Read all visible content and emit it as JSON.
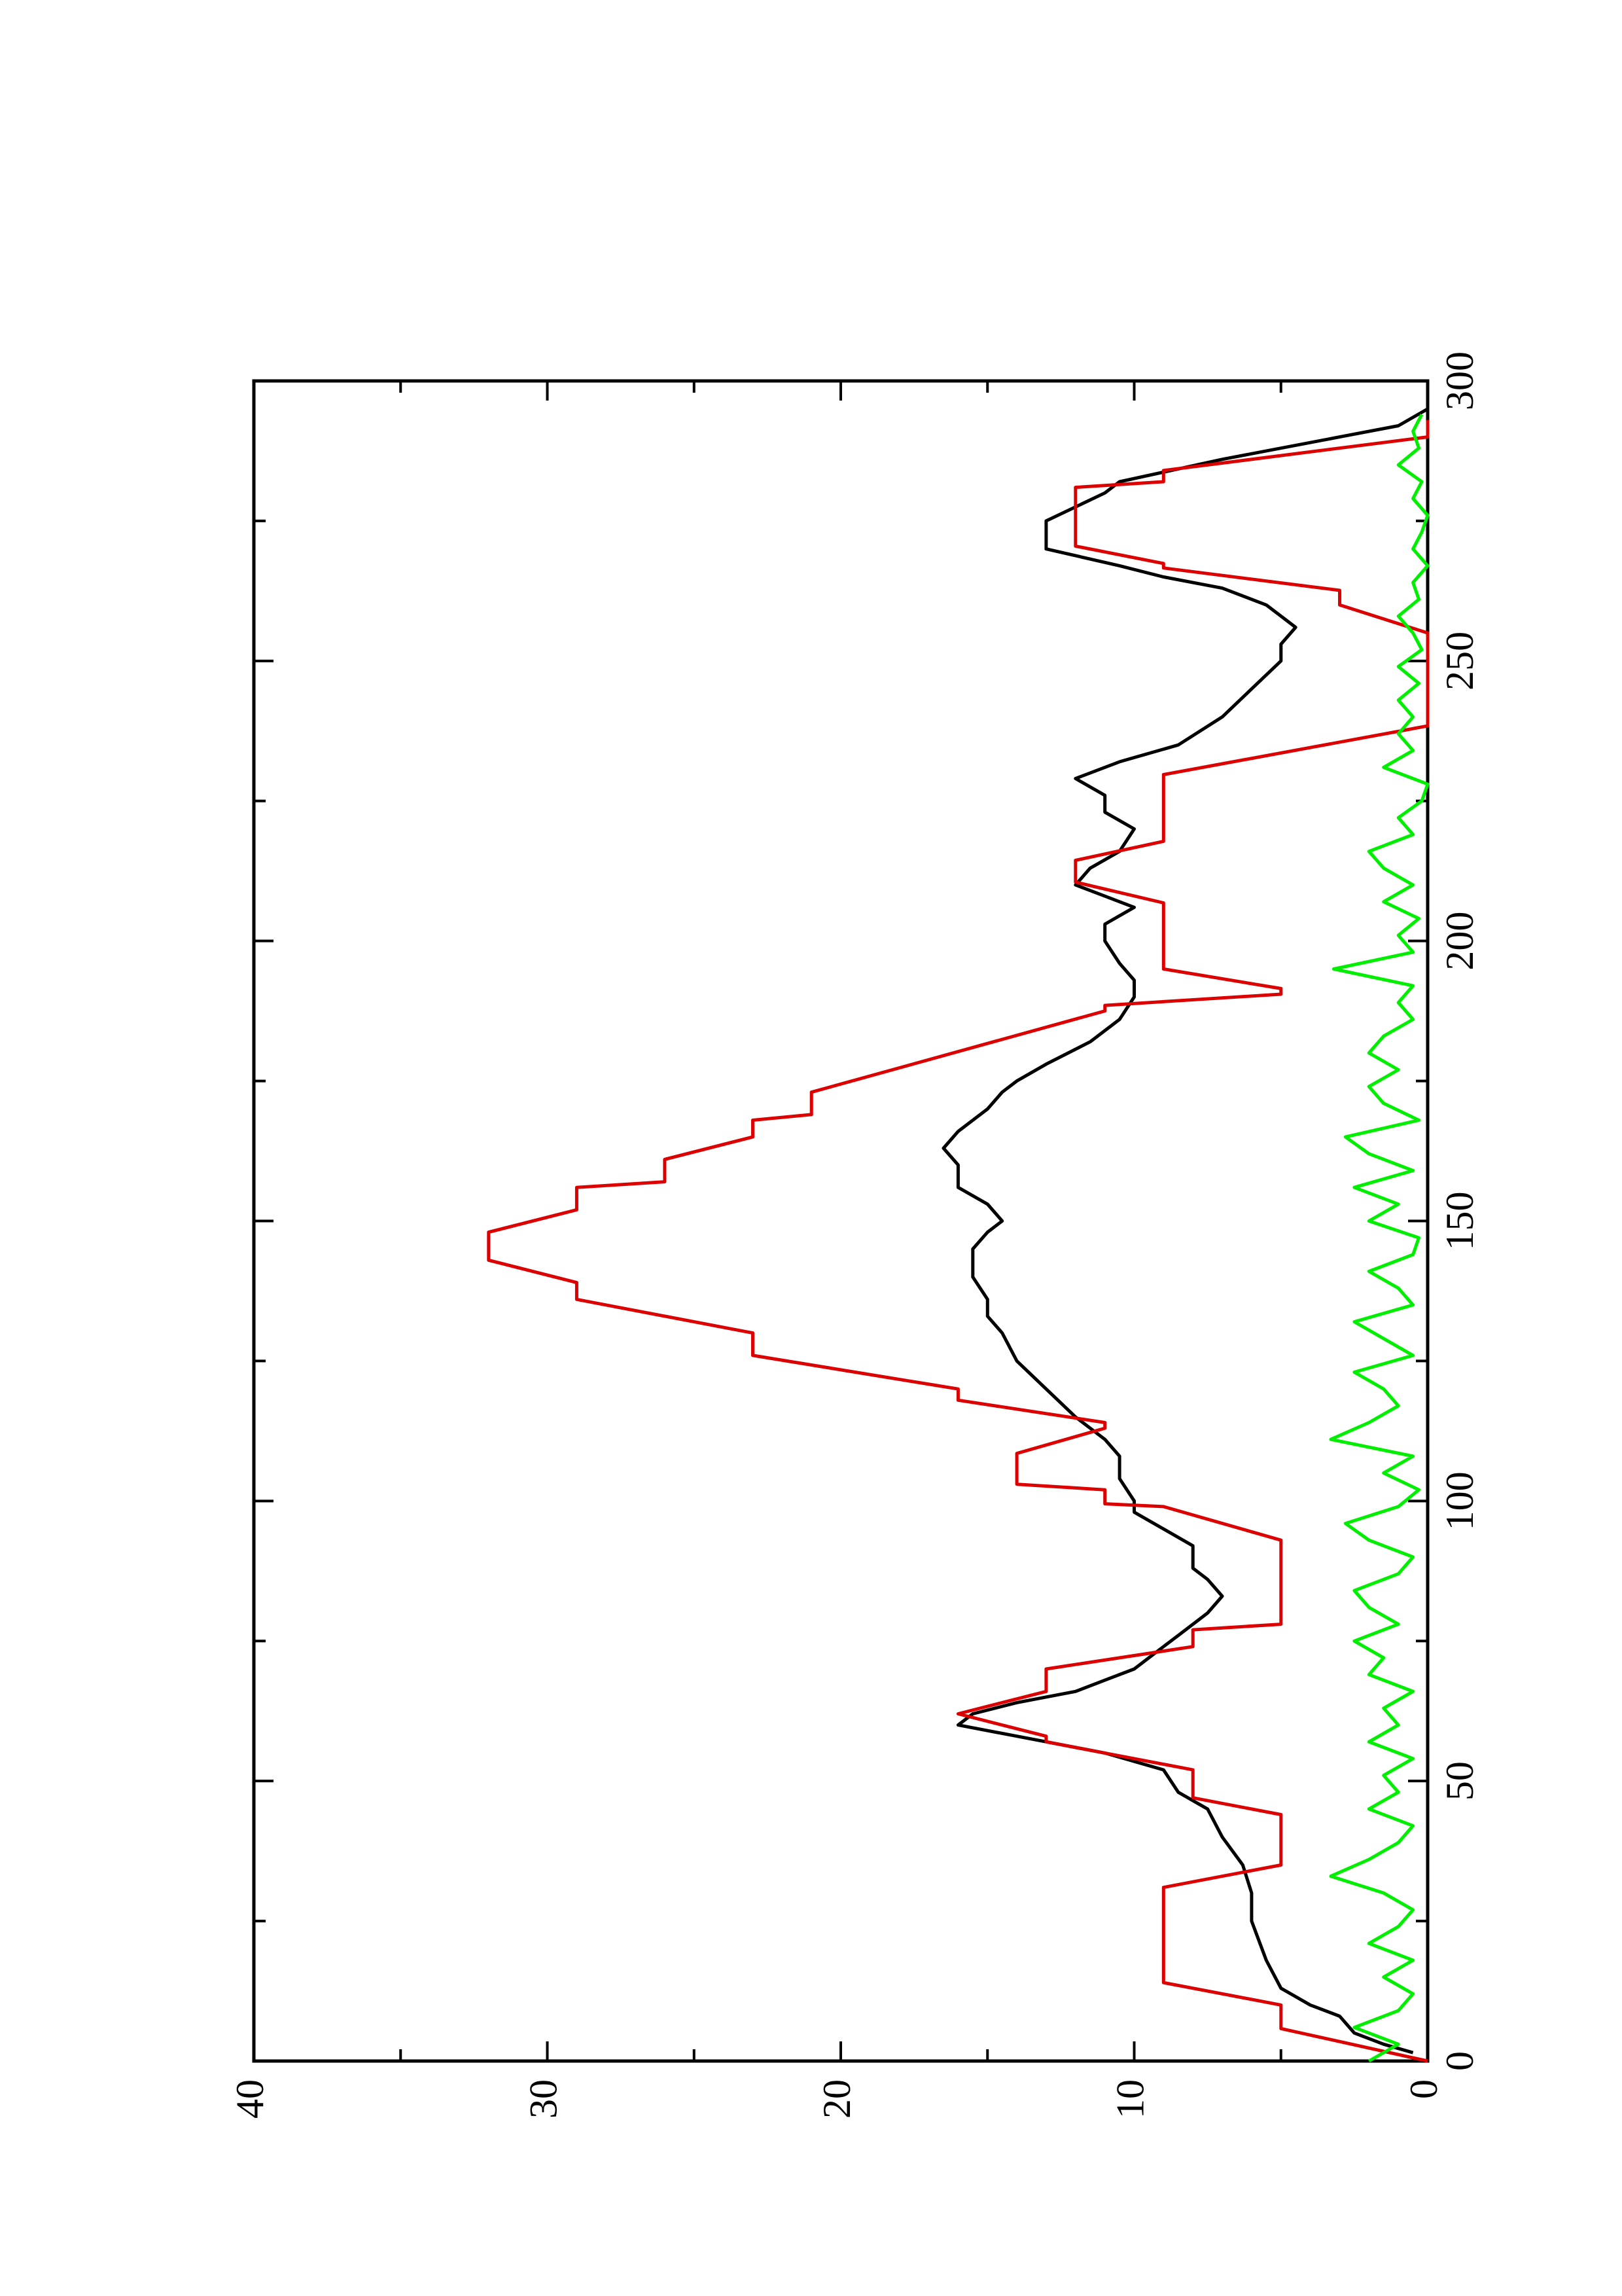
{
  "chart_data": {
    "type": "line",
    "xlim": [
      0,
      300
    ],
    "xticks": [
      0,
      50,
      100,
      150,
      200,
      250,
      300
    ],
    "xminorticks": [
      25,
      75,
      125,
      175,
      225,
      275
    ],
    "ylim": [
      0,
      40
    ],
    "yticks": [
      0,
      10,
      20,
      30,
      40
    ],
    "yminorticks": [
      5,
      15,
      25,
      35
    ],
    "grid": false,
    "series": [
      {
        "color": "#000000",
        "x": [
          1.5,
          3,
          5,
          8,
          10,
          13,
          18,
          25,
          30,
          35,
          40,
          45,
          48,
          52,
          55,
          58,
          60,
          62,
          64,
          66,
          68,
          70,
          72,
          74,
          76,
          80,
          83,
          86,
          88,
          92,
          95,
          98,
          100,
          104,
          108,
          111,
          115,
          120,
          125,
          130,
          133,
          136,
          140,
          145,
          148,
          150,
          153,
          156,
          160,
          163,
          166,
          170,
          173,
          175,
          178,
          182,
          186,
          190,
          193,
          196,
          200,
          203,
          206,
          208,
          210,
          213,
          216,
          220,
          223,
          226,
          229,
          232,
          235,
          240,
          245,
          250,
          253,
          256,
          258,
          260,
          263,
          265,
          267,
          270,
          275,
          280,
          282,
          286,
          290,
          292,
          295
        ],
        "values": [
          0.5,
          1.5,
          2.5,
          3,
          4,
          5,
          5.5,
          6,
          6,
          6.3,
          7,
          7.5,
          8.5,
          9,
          11,
          14,
          16,
          15.5,
          14,
          12,
          11,
          10,
          9.5,
          9,
          8.5,
          7.5,
          7,
          7.5,
          8,
          8,
          9,
          10,
          10,
          10.5,
          10.5,
          11,
          12,
          13,
          14,
          14.5,
          15,
          15,
          15.5,
          15.5,
          15,
          14.5,
          15,
          16,
          16,
          16.5,
          16,
          15,
          14.5,
          14,
          13,
          11.5,
          10.5,
          10,
          10,
          10.5,
          11,
          11,
          10,
          11,
          12,
          11.5,
          10.5,
          10,
          11,
          11,
          12,
          10.5,
          8.5,
          7,
          6,
          5,
          5,
          4.5,
          5,
          5.5,
          7,
          9,
          10.5,
          13,
          13,
          11,
          10.5,
          7,
          3,
          1,
          0
        ]
      },
      {
        "color": "#dd0000",
        "x": [
          0,
          5.8,
          10,
          14,
          31,
          35,
          44,
          47,
          52,
          57,
          58,
          62,
          66,
          70,
          74,
          77,
          78,
          93,
          99,
          99.5,
          102,
          103,
          108.5,
          113,
          114,
          118,
          120,
          126,
          130,
          136,
          139,
          143,
          148,
          152,
          156,
          157,
          161,
          165,
          168,
          169,
          173,
          187.5,
          188.5,
          190.5,
          191.5,
          195,
          206.8,
          210.5,
          214.4,
          217.8,
          229.7,
          238.4,
          255,
          260,
          262.6,
          266.6,
          267.4,
          270.5,
          281,
          282,
          284,
          290,
          293
        ],
        "values": [
          0,
          5,
          5,
          9,
          9,
          5,
          5,
          8,
          8,
          13,
          13,
          16,
          13,
          13,
          8,
          8,
          5,
          5,
          9,
          11,
          11,
          14,
          14,
          11,
          11,
          16,
          16,
          23,
          23,
          29,
          29,
          32,
          32,
          29,
          29,
          26,
          26,
          23,
          23,
          21,
          21,
          11,
          11,
          5,
          5,
          9,
          9,
          12,
          12,
          9,
          9,
          0,
          0,
          3,
          3,
          9,
          9,
          12,
          12,
          9,
          9,
          0,
          0
        ]
      },
      {
        "color": "#00ee00",
        "x": [
          0,
          3,
          6,
          9,
          12,
          15,
          18,
          21,
          24,
          27,
          30,
          33,
          36,
          39,
          42,
          45,
          48,
          51,
          54,
          57,
          60,
          63,
          66,
          69,
          72,
          75,
          78,
          81,
          84,
          87,
          90,
          93,
          96,
          99,
          102,
          105,
          108,
          111,
          114,
          117,
          120,
          123,
          126,
          129,
          132,
          135,
          138,
          141,
          144,
          147,
          150,
          153,
          156,
          159,
          162,
          165,
          168,
          171,
          174,
          177,
          180,
          183,
          186,
          189,
          192,
          195,
          198,
          201,
          204,
          207,
          210,
          213,
          216,
          219,
          222,
          225,
          228,
          231,
          234,
          237,
          240,
          243,
          246,
          249,
          252,
          255,
          258,
          261,
          264,
          267,
          270,
          273,
          276,
          279,
          282,
          285,
          288,
          291,
          294
        ],
        "values": [
          2,
          1,
          2.5,
          1,
          0.5,
          1.5,
          0.5,
          2,
          1,
          0.5,
          1.5,
          3.3,
          2,
          1,
          0.5,
          2,
          1,
          1.5,
          0.5,
          2,
          1,
          1.5,
          0.5,
          2,
          1.5,
          2.5,
          1,
          2,
          2.5,
          1,
          0.5,
          2,
          2.8,
          1,
          0.3,
          1.5,
          0.5,
          3.3,
          2,
          1,
          1.5,
          2.5,
          0.5,
          1.5,
          2.5,
          0.5,
          1,
          2,
          0.5,
          0.3,
          2,
          1,
          2.5,
          0.5,
          2,
          2.8,
          0.3,
          1.5,
          2,
          1,
          2,
          1.5,
          0.5,
          1,
          0.5,
          3.2,
          0.5,
          1,
          0.3,
          1.5,
          0.5,
          1.5,
          2,
          0.5,
          1,
          0.2,
          0,
          1.5,
          0.5,
          1,
          0.5,
          1,
          0.3,
          1,
          0.2,
          0.5,
          1,
          0.3,
          0.5,
          0,
          0.5,
          0.2,
          0,
          0.5,
          0.2,
          1,
          0.3,
          0.5,
          0.2
        ]
      }
    ]
  }
}
